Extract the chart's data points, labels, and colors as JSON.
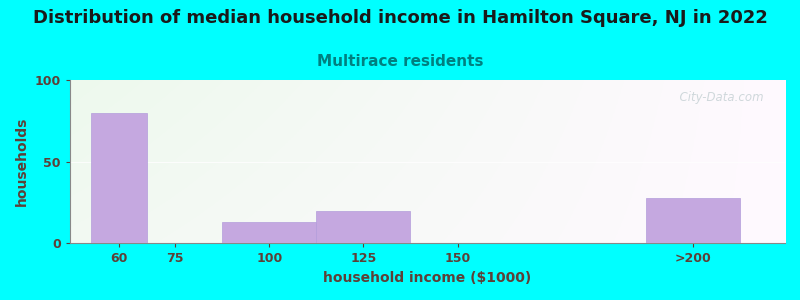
{
  "title": "Distribution of median household income in Hamilton Square, NJ in 2022",
  "subtitle": "Multirace residents",
  "xlabel": "household income ($1000)",
  "ylabel": "households",
  "background_color": "#00FFFF",
  "bar_color": "#c5a8e0",
  "bar_edge_color": "#b39ddb",
  "categories": [
    "60",
    "75",
    "100",
    "125",
    "150",
    ">200"
  ],
  "x_positions": [
    60,
    75,
    100,
    125,
    150,
    212.5
  ],
  "x_widths": [
    15,
    0,
    25,
    25,
    0,
    25
  ],
  "values": [
    80,
    0,
    13,
    20,
    0,
    28
  ],
  "xlim": [
    47,
    237
  ],
  "xticks": [
    60,
    75,
    100,
    125,
    150,
    212.5
  ],
  "xticklabels": [
    "60",
    "75",
    "100",
    "125",
    "150",
    ">200"
  ],
  "ylim": [
    0,
    100
  ],
  "yticks": [
    0,
    50,
    100
  ],
  "title_fontsize": 13,
  "subtitle_fontsize": 11,
  "subtitle_color": "#008080",
  "axis_label_color": "#5d4037",
  "tick_color": "#5d4037",
  "watermark": "  City-Data.com"
}
